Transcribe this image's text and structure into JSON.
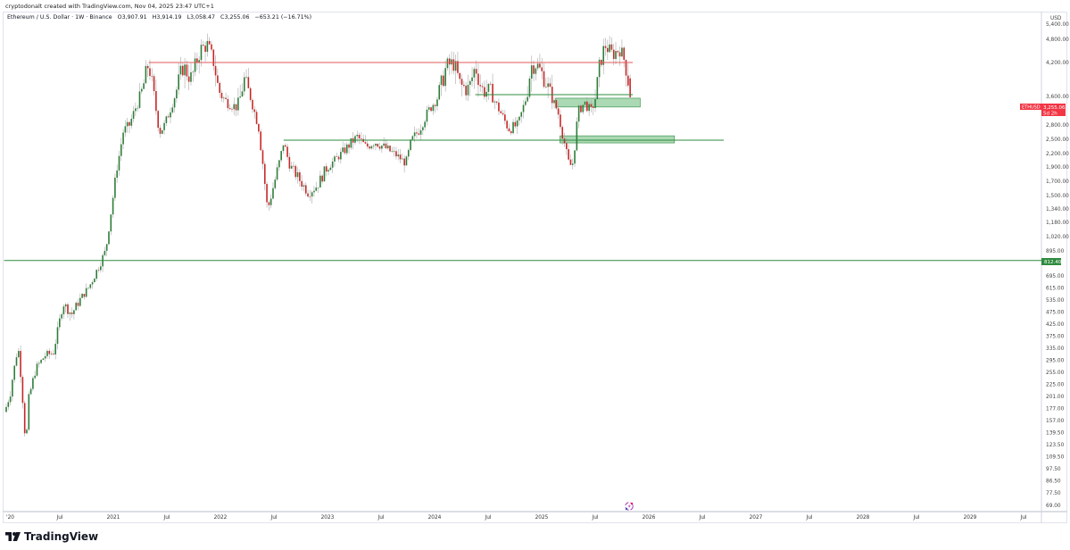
{
  "credit": "cryptodonalt created with TradingView.com, Nov 04, 2025 23:47 UTC+1",
  "legend": {
    "symbol": "Ethereum / U.S. Dollar · 1W · Binance",
    "open": "O3,907.91",
    "high": "H3,914.19",
    "low": "L3,058.47",
    "close": "C3,255.06",
    "change": "−653.21 (−16.71%)"
  },
  "price_axis": {
    "currency": "USD",
    "ticks": [
      "5,400.00",
      "4,800.00",
      "4,200.00",
      "3,600.00",
      "2,800.00",
      "2,500.00",
      "2,200.00",
      "1,900.00",
      "1,700.00",
      "1,500.00",
      "1,340.00",
      "1,180.00",
      "1,020.00",
      "895.00",
      "695.00",
      "615.00",
      "535.00",
      "475.00",
      "425.00",
      "375.00",
      "335.00",
      "295.00",
      "255.00",
      "225.00",
      "201.00",
      "177.00",
      "157.00",
      "139.50",
      "123.50",
      "109.50",
      "97.50",
      "86.50",
      "77.50",
      "69.00"
    ],
    "tick_values": [
      5400,
      4800,
      4200,
      3600,
      2800,
      2500,
      2200,
      1900,
      1700,
      1500,
      1340,
      1180,
      1020,
      895,
      695,
      615,
      535,
      475,
      425,
      375,
      335,
      295,
      255,
      225,
      201,
      177,
      157,
      139.5,
      123.5,
      109.5,
      97.5,
      86.5,
      77.5,
      69
    ],
    "last_price_label": {
      "symbol": "ETHUSD",
      "price": "3,255.06",
      "countdown": "5d 2h",
      "value": 3255.06
    },
    "level_label": {
      "price": "812.40",
      "value": 812.4
    }
  },
  "time_axis": {
    "labels": [
      "'20",
      "Jul",
      "2021",
      "Jul",
      "2022",
      "Jul",
      "2023",
      "Jul",
      "2024",
      "Jul",
      "2025",
      "Jul",
      "2026",
      "Jul",
      "2027",
      "Jul",
      "2028",
      "Jul",
      "2029",
      "Jul"
    ],
    "label_dates": [
      2020.0,
      2020.5,
      2021.0,
      2021.5,
      2022.0,
      2022.5,
      2023.0,
      2023.5,
      2024.0,
      2024.5,
      2025.0,
      2025.5,
      2026.0,
      2026.5,
      2027.0,
      2027.5,
      2028.0,
      2028.5,
      2029.0,
      2029.5
    ]
  },
  "colors": {
    "up": "#2e7d3a",
    "down": "#c62828",
    "wick": "#a8a8a8",
    "resistance": "#e05a5a",
    "support": "#2e8b3e",
    "zone_fill": "#8fcc9b",
    "last_price_bg": "#f23645",
    "level_bg": "#2e8b3e"
  },
  "chart_data": {
    "type": "candlestick",
    "symbol": "ETHUSD",
    "interval": "1W",
    "scale": "log",
    "close_path": [
      [
        2020.0,
        180
      ],
      [
        2020.04,
        210
      ],
      [
        2020.11,
        345
      ],
      [
        2020.14,
        235
      ],
      [
        2020.17,
        153
      ],
      [
        2020.18,
        115
      ],
      [
        2020.21,
        196
      ],
      [
        2020.28,
        270
      ],
      [
        2020.36,
        310
      ],
      [
        2020.44,
        320
      ],
      [
        2020.53,
        520
      ],
      [
        2020.61,
        465
      ],
      [
        2020.69,
        540
      ],
      [
        2020.78,
        630
      ],
      [
        2020.86,
        760
      ],
      [
        2020.93,
        900
      ],
      [
        2020.98,
        1320
      ],
      [
        2021.03,
        1860
      ],
      [
        2021.09,
        2650
      ],
      [
        2021.15,
        2800
      ],
      [
        2021.21,
        3280
      ],
      [
        2021.28,
        3780
      ],
      [
        2021.33,
        4200
      ],
      [
        2021.38,
        3580
      ],
      [
        2021.43,
        2650
      ],
      [
        2021.48,
        2800
      ],
      [
        2021.57,
        3580
      ],
      [
        2021.65,
        4130
      ],
      [
        2021.73,
        3900
      ],
      [
        2021.82,
        4550
      ],
      [
        2021.88,
        4650
      ],
      [
        2021.94,
        4200
      ],
      [
        2021.98,
        3720
      ],
      [
        2022.07,
        3400
      ],
      [
        2022.15,
        3280
      ],
      [
        2022.22,
        3900
      ],
      [
        2022.28,
        3580
      ],
      [
        2022.36,
        2720
      ],
      [
        2022.41,
        1740
      ],
      [
        2022.44,
        1320
      ],
      [
        2022.48,
        1540
      ],
      [
        2022.54,
        1920
      ],
      [
        2022.59,
        2450
      ],
      [
        2022.65,
        1920
      ],
      [
        2022.73,
        1740
      ],
      [
        2022.82,
        1540
      ],
      [
        2022.9,
        1630
      ],
      [
        2022.98,
        1860
      ],
      [
        2023.11,
        2150
      ],
      [
        2023.23,
        2450
      ],
      [
        2023.28,
        2550
      ],
      [
        2023.36,
        2330
      ],
      [
        2023.44,
        2450
      ],
      [
        2023.53,
        2330
      ],
      [
        2023.65,
        2150
      ],
      [
        2023.73,
        1980
      ],
      [
        2023.78,
        2450
      ],
      [
        2023.86,
        2720
      ],
      [
        2023.94,
        3160
      ],
      [
        2024.03,
        3580
      ],
      [
        2024.11,
        4130
      ],
      [
        2024.18,
        4200
      ],
      [
        2024.24,
        3780
      ],
      [
        2024.32,
        3720
      ],
      [
        2024.38,
        4130
      ],
      [
        2024.44,
        3720
      ],
      [
        2024.53,
        3650
      ],
      [
        2024.61,
        3160
      ],
      [
        2024.69,
        2720
      ],
      [
        2024.78,
        2800
      ],
      [
        2024.84,
        3400
      ],
      [
        2024.9,
        4130
      ],
      [
        2024.94,
        4200
      ],
      [
        2025.03,
        3900
      ],
      [
        2025.09,
        3580
      ],
      [
        2025.15,
        3160
      ],
      [
        2025.21,
        2450
      ],
      [
        2025.26,
        1920
      ],
      [
        2025.29,
        1980
      ],
      [
        2025.34,
        3160
      ],
      [
        2025.4,
        3400
      ],
      [
        2025.46,
        3160
      ],
      [
        2025.49,
        3400
      ],
      [
        2025.54,
        4130
      ],
      [
        2025.59,
        4650
      ],
      [
        2025.66,
        4400
      ],
      [
        2025.73,
        4550
      ],
      [
        2025.78,
        4200
      ],
      [
        2025.82,
        3720
      ],
      [
        2025.84,
        3255.06
      ]
    ],
    "horizontal_lines": [
      {
        "name": "resistance",
        "price": 4200,
        "from": 2021.33,
        "to": 2025.85,
        "color": "resistance"
      },
      {
        "name": "support-upper",
        "price": 3630,
        "from": 2024.38,
        "to": 2025.85,
        "color": "support"
      },
      {
        "name": "support-lower",
        "price": 2480,
        "from": 2022.59,
        "to": 2026.7,
        "color": "support"
      },
      {
        "name": "support-long-term",
        "price": 812.4,
        "from": 2019.98,
        "to": 2029.7,
        "color": "support"
      }
    ],
    "zones": [
      {
        "name": "demand-zone-upper",
        "low": 3280,
        "high": 3545,
        "from": 2025.13,
        "to": 2025.92
      },
      {
        "name": "demand-zone-lower",
        "low": 2420,
        "high": 2570,
        "from": 2025.17,
        "to": 2026.24
      }
    ]
  }
}
